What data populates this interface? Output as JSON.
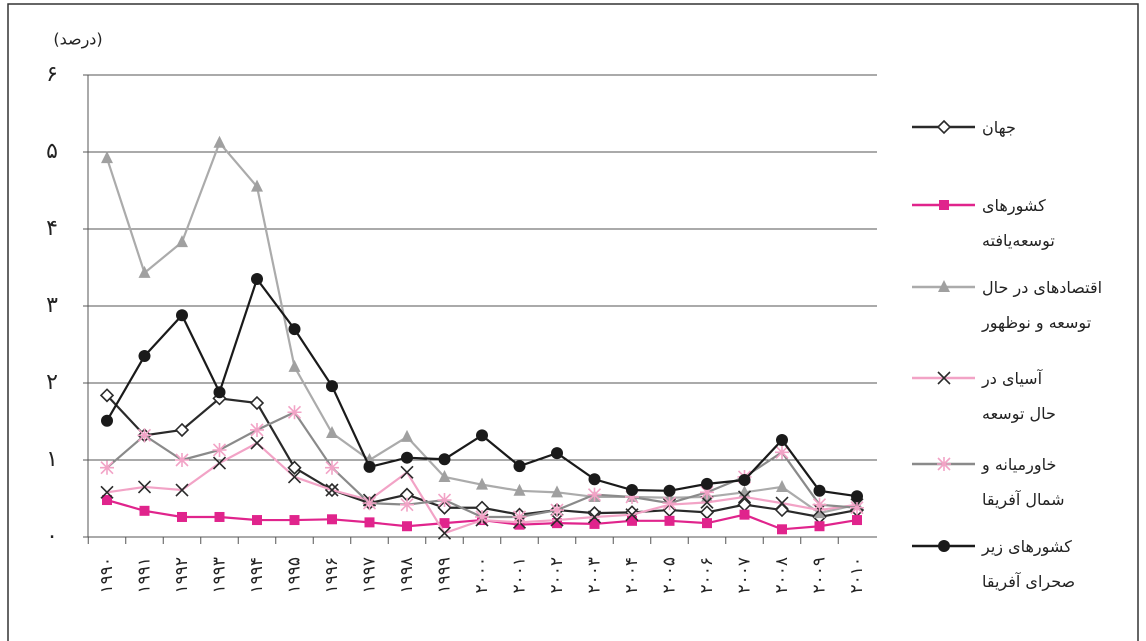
{
  "chart_data": {
    "type": "line",
    "y_label": "(درصد)",
    "categories": [
      "۱۹۹۰",
      "۱۹۹۱",
      "۱۹۹۲",
      "۱۹۹۳",
      "۱۹۹۴",
      "۱۹۹۵",
      "۱۹۹۶",
      "۱۹۹۷",
      "۱۹۹۸",
      "۱۹۹۹",
      "۲۰۰۰",
      "۲۰۰۱",
      "۲۰۰۲",
      "۲۰۰۳",
      "۲۰۰۴",
      "۲۰۰۵",
      "۲۰۰۶",
      "۲۰۰۷",
      "۲۰۰۸",
      "۲۰۰۹",
      "۲۰۱۰"
    ],
    "ylim": [
      0,
      6
    ],
    "yticks": [
      {
        "value": 0,
        "label": "۰"
      },
      {
        "value": 1,
        "label": "۱"
      },
      {
        "value": 2,
        "label": "۲"
      },
      {
        "value": 3,
        "label": "۳"
      },
      {
        "value": 4,
        "label": "۴"
      },
      {
        "value": 5,
        "label": "۵"
      },
      {
        "value": 6,
        "label": "۶"
      }
    ],
    "grid": true,
    "legend": "right",
    "series": [
      {
        "name": "جهان",
        "color": "#2a2a2a",
        "marker": "diamond",
        "marker_color": "#2a2a2a",
        "values": [
          1.84,
          1.32,
          1.39,
          1.8,
          1.74,
          0.9,
          0.61,
          0.44,
          0.55,
          0.38,
          0.38,
          0.29,
          0.35,
          0.31,
          0.32,
          0.35,
          0.32,
          0.42,
          0.35,
          0.26,
          0.35
        ]
      },
      {
        "name": "کشورهای توسعه‌یافته",
        "color": "#e0248c",
        "marker": "square",
        "marker_color": "#e0248c",
        "values": [
          0.48,
          0.34,
          0.26,
          0.26,
          0.22,
          0.22,
          0.23,
          0.19,
          0.14,
          0.18,
          0.22,
          0.16,
          0.18,
          0.17,
          0.21,
          0.21,
          0.18,
          0.29,
          0.1,
          0.14,
          0.22
        ]
      },
      {
        "name": "اقتصادهای در حال توسعه و نوظهور",
        "color": "#ababab",
        "marker": "triangle",
        "marker_color": "#a0a0a0",
        "values": [
          4.92,
          3.43,
          3.83,
          5.12,
          4.55,
          2.21,
          1.35,
          1.0,
          1.3,
          0.78,
          0.68,
          0.6,
          0.58,
          0.52,
          0.52,
          0.51,
          0.52,
          0.58,
          0.65,
          0.31,
          0.42
        ]
      },
      {
        "name": "آسیای در حال توسعه",
        "color": "#f2a3c6",
        "marker": "x",
        "marker_color": "#2a2a2a",
        "values": [
          0.58,
          0.65,
          0.61,
          0.96,
          1.22,
          0.78,
          0.61,
          0.48,
          0.84,
          0.05,
          0.22,
          0.19,
          0.22,
          0.26,
          0.29,
          0.42,
          0.45,
          0.52,
          0.44,
          0.35,
          0.42
        ]
      },
      {
        "name": "خاورمیانه و شمال آفریقا",
        "color": "#8a8a8a",
        "marker": "asterisk",
        "marker_color": "#f2a3c6",
        "values": [
          0.9,
          1.32,
          1.0,
          1.13,
          1.39,
          1.62,
          0.9,
          0.44,
          0.42,
          0.48,
          0.26,
          0.26,
          0.35,
          0.55,
          0.52,
          0.44,
          0.58,
          0.78,
          1.1,
          0.42,
          0.38
        ]
      },
      {
        "name": "کشورهای زیر صحرای آفریقا",
        "color": "#1a1a1a",
        "marker": "circle",
        "marker_color": "#1a1a1a",
        "values": [
          1.51,
          2.35,
          2.88,
          1.88,
          3.35,
          2.7,
          1.96,
          0.91,
          1.03,
          1.01,
          1.32,
          0.92,
          1.09,
          0.75,
          0.61,
          0.6,
          0.69,
          0.74,
          1.26,
          0.6,
          0.53
        ]
      }
    ]
  }
}
